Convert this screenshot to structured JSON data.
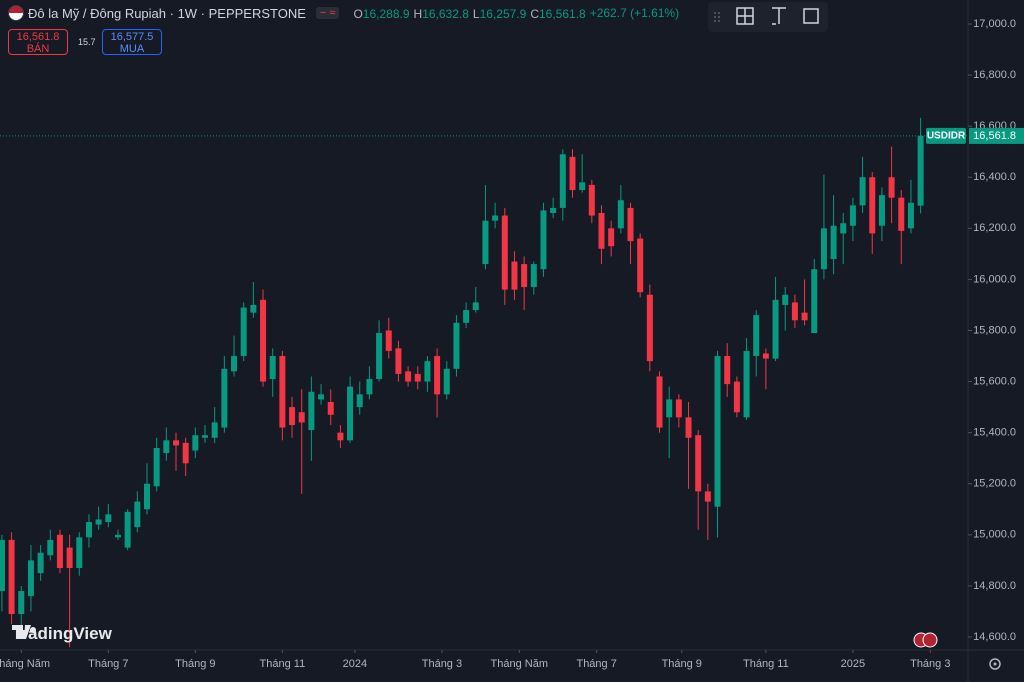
{
  "header": {
    "title": "Đô la Mỹ / Đông Rupiah · 1W · PEPPERSTONE",
    "ohlc_legend": [
      {
        "key": "O",
        "value": "16,288.9"
      },
      {
        "key": "H",
        "value": "16,632.8"
      },
      {
        "key": "L",
        "value": "16,257.9"
      },
      {
        "key": "C",
        "value": "16,561.8"
      }
    ],
    "change": "+262.7 (+1.61%)"
  },
  "trade_buttons": {
    "sell": {
      "price": "16,561.8",
      "label": "BÁN"
    },
    "spread": "15.7",
    "buy": {
      "price": "16,577.5",
      "label": "MUA"
    }
  },
  "watermark": "TradingView",
  "chart_data": {
    "type": "candlestick",
    "up_color": "#089981",
    "down_color": "#f23645",
    "last_price_tag": {
      "symbol": "USDIDR",
      "price": "16,561.8"
    },
    "ylim": [
      14549,
      17094
    ],
    "yticks": [
      {
        "value": 14600,
        "label": "14,600.0"
      },
      {
        "value": 14800,
        "label": "14,800.0"
      },
      {
        "value": 15000,
        "label": "15,000.0"
      },
      {
        "value": 15200,
        "label": "15,200.0"
      },
      {
        "value": 15400,
        "label": "15,400.0"
      },
      {
        "value": 15600,
        "label": "15,600.0"
      },
      {
        "value": 15800,
        "label": "15,800.0"
      },
      {
        "value": 16000,
        "label": "16,000.0"
      },
      {
        "value": 16200,
        "label": "16,200.0"
      },
      {
        "value": 16400,
        "label": "16,400.0"
      },
      {
        "value": 16600,
        "label": "16,600.0"
      },
      {
        "value": 16800,
        "label": "16,800.0"
      },
      {
        "value": 17000,
        "label": "17,000.0"
      }
    ],
    "xlim": [
      -0.2,
      99.9
    ],
    "xticks": [
      {
        "value": 2,
        "label": "Tháng Năm"
      },
      {
        "value": 11,
        "label": "Tháng 7"
      },
      {
        "value": 20,
        "label": "Tháng 9"
      },
      {
        "value": 29,
        "label": "Tháng 11"
      },
      {
        "value": 36.5,
        "label": "2024"
      },
      {
        "value": 45.5,
        "label": "Tháng 3"
      },
      {
        "value": 53.5,
        "label": "Tháng Năm"
      },
      {
        "value": 61.5,
        "label": "Tháng 7"
      },
      {
        "value": 70.3,
        "label": "Tháng 9"
      },
      {
        "value": 79,
        "label": "Tháng 11"
      },
      {
        "value": 88,
        "label": "2025"
      },
      {
        "value": 96,
        "label": "Tháng 3"
      }
    ],
    "open": [
      14780,
      14980,
      14690,
      14760,
      14850,
      14920,
      15000,
      14950,
      14870,
      14990,
      15040,
      15050,
      14990,
      14950,
      15030,
      15100,
      15190,
      15320,
      15370,
      15360,
      15330,
      15380,
      15380,
      15420,
      15640,
      15700,
      15870,
      15920,
      15610,
      15700,
      15500,
      15480,
      15410,
      15530,
      15520,
      15400,
      15370,
      15500,
      15550,
      15610,
      15800,
      15730,
      15640,
      15630,
      15600,
      15700,
      15550,
      15650,
      15830,
      15880,
      16060,
      16230,
      16250,
      16070,
      16060,
      15970,
      16040,
      16260,
      16280,
      16480,
      16350,
      16370,
      16260,
      16200,
      16200,
      16280,
      16160,
      15940,
      15620,
      15460,
      15530,
      15460,
      15390,
      15170,
      15110,
      15700,
      15600,
      15460,
      15700,
      15710,
      15690,
      15900,
      15910,
      15870,
      15790,
      16040,
      16080,
      16180,
      16210,
      16290,
      16400,
      16210,
      16400,
      16320,
      16200,
      16288.9
    ],
    "high": [
      15000,
      15010,
      14800,
      14960,
      14960,
      15020,
      15020,
      15000,
      15010,
      15080,
      15110,
      15120,
      15020,
      15100,
      15170,
      15280,
      15380,
      15420,
      15400,
      15380,
      15420,
      15430,
      15500,
      15700,
      15780,
      15910,
      15990,
      15960,
      15730,
      15720,
      15540,
      15570,
      15620,
      15590,
      15570,
      15430,
      15620,
      15600,
      15660,
      15840,
      15850,
      15760,
      15660,
      15660,
      15700,
      15730,
      15680,
      15860,
      15910,
      15970,
      16370,
      16300,
      16280,
      16110,
      16090,
      16070,
      16300,
      16320,
      16510,
      16510,
      16490,
      16390,
      16290,
      16230,
      16370,
      16300,
      16180,
      15980,
      15640,
      15580,
      15550,
      15520,
      15410,
      15200,
      15720,
      15750,
      15620,
      15770,
      15880,
      15730,
      16010,
      15970,
      15940,
      16000,
      16080,
      16410,
      16330,
      16260,
      16320,
      16480,
      16420,
      16360,
      16520,
      16350,
      16390,
      16632.8
    ],
    "low": [
      14700,
      14650,
      14640,
      14700,
      14820,
      14900,
      14850,
      14560,
      14840,
      14950,
      15020,
      15030,
      14980,
      14940,
      15010,
      15080,
      15170,
      15290,
      15250,
      15230,
      15300,
      15360,
      15360,
      15400,
      15620,
      15680,
      15850,
      15580,
      15540,
      15370,
      15380,
      15160,
      15290,
      15510,
      15430,
      15340,
      15360,
      15470,
      15530,
      15600,
      15690,
      15600,
      15580,
      15570,
      15560,
      15460,
      15530,
      15620,
      15810,
      15870,
      16040,
      16200,
      15900,
      15920,
      15880,
      15940,
      16010,
      16240,
      16230,
      16320,
      16340,
      16220,
      16060,
      16090,
      16180,
      16060,
      15930,
      15640,
      15400,
      15300,
      15420,
      15180,
      15020,
      14980,
      14990,
      15540,
      15460,
      15450,
      15620,
      15570,
      15680,
      15800,
      15810,
      15820,
      15790,
      16000,
      16020,
      16060,
      16150,
      16260,
      16100,
      16150,
      16220,
      16060,
      16180,
      16257.9
    ],
    "close": [
      14980,
      14690,
      14780,
      14900,
      14930,
      14980,
      14870,
      14870,
      14990,
      15050,
      15060,
      15080,
      15000,
      15090,
      15130,
      15200,
      15340,
      15370,
      15350,
      15280,
      15390,
      15390,
      15440,
      15650,
      15700,
      15890,
      15900,
      15600,
      15700,
      15420,
      15430,
      15440,
      15560,
      15550,
      15470,
      15370,
      15580,
      15550,
      15610,
      15790,
      15720,
      15630,
      15600,
      15600,
      15680,
      15550,
      15650,
      15830,
      15880,
      15910,
      16230,
      16250,
      15960,
      15960,
      15970,
      16060,
      16270,
      16280,
      16490,
      16350,
      16380,
      16250,
      16120,
      16130,
      16310,
      16150,
      15950,
      15680,
      15420,
      15530,
      15460,
      15380,
      15170,
      15130,
      15700,
      15590,
      15480,
      15720,
      15860,
      15690,
      15920,
      15940,
      15840,
      15840,
      16040,
      16200,
      16210,
      16220,
      16290,
      16400,
      16180,
      16330,
      16320,
      16190,
      16300,
      16561.8
    ]
  }
}
